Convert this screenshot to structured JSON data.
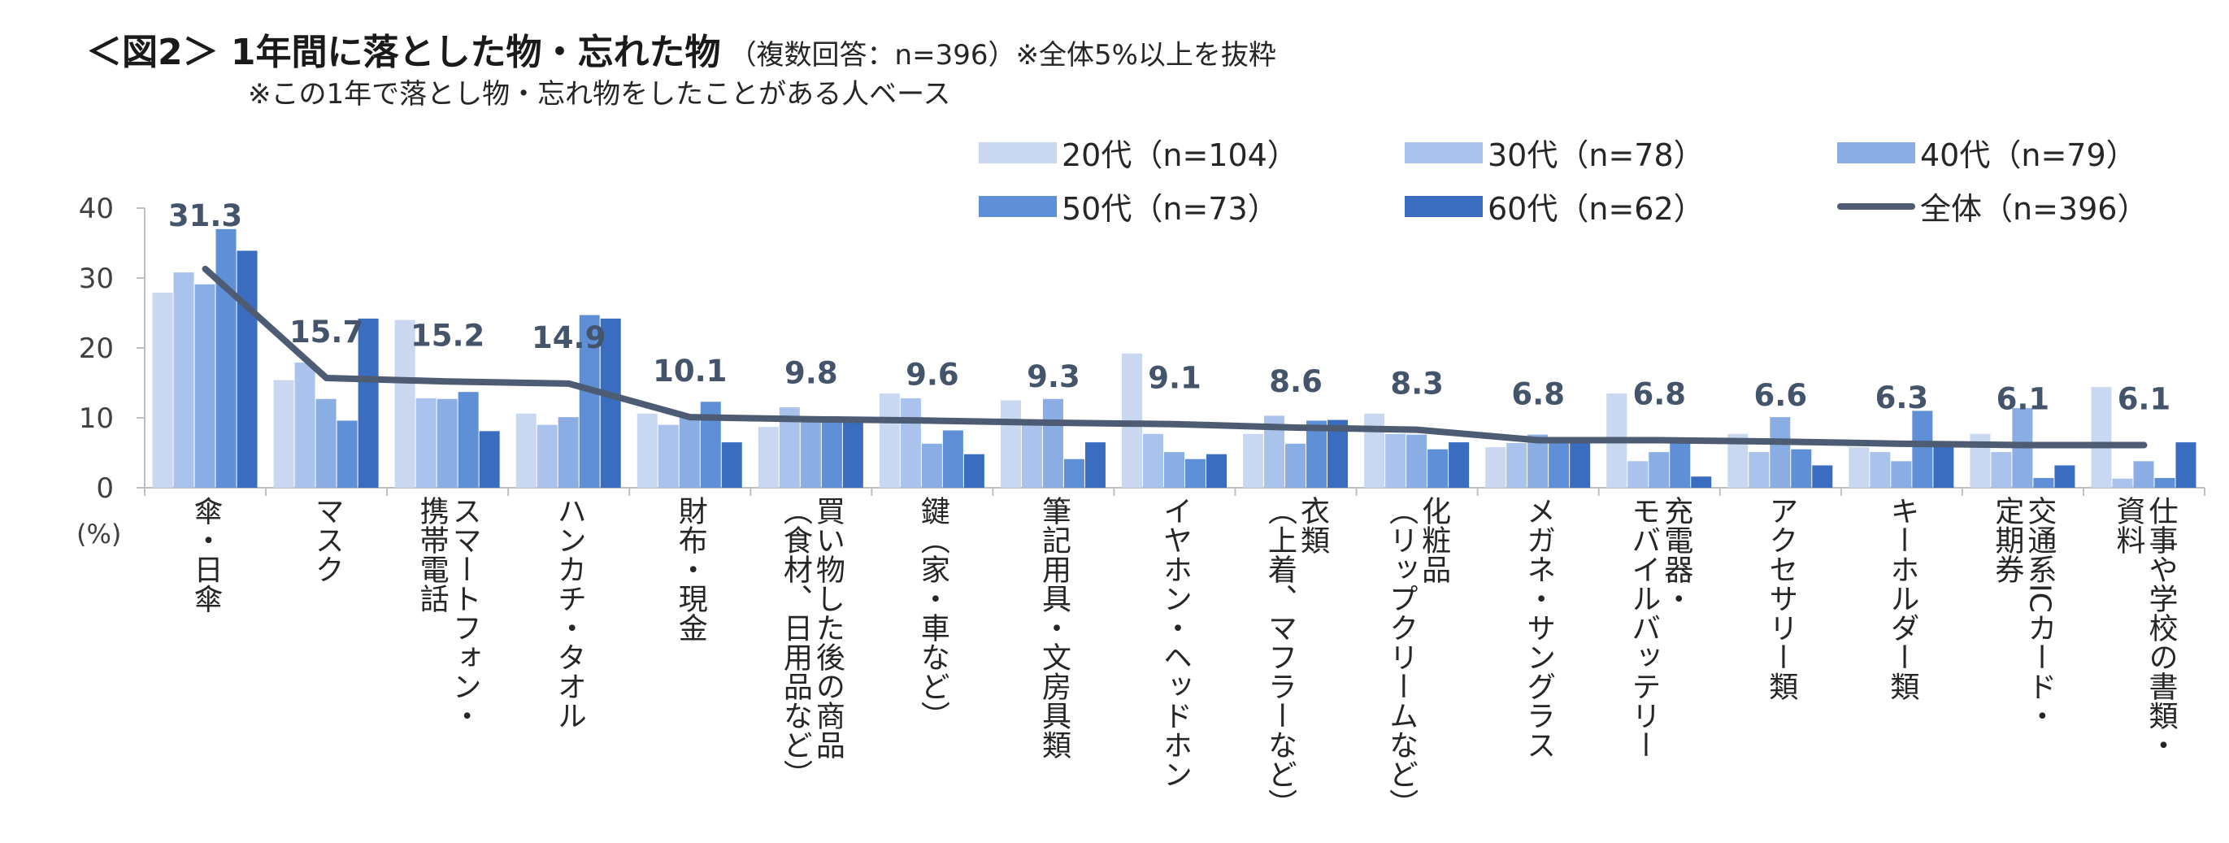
{
  "title": {
    "main": "＜図2＞ 1年間に落とした物・忘れた物",
    "sub": "（複数回答：n=396）※全体5%以上を抜粋",
    "note": "※この1年で落とし物・忘れ物をしたことがある人ベース"
  },
  "colors": {
    "s20": "#C9D8F0",
    "s30": "#A9C3EC",
    "s40": "#8AAEE4",
    "s50": "#5F8FD6",
    "s60": "#3A6DBF",
    "total": "#4D5B73",
    "label": "#44546A"
  },
  "chart_data": {
    "type": "bar",
    "ylabel": "(%)",
    "ylim": [
      0,
      40
    ],
    "yticks": [
      "0",
      "10",
      "20",
      "30",
      "40"
    ],
    "legend_position": "top-right",
    "categories": [
      "傘・日傘",
      "マスク",
      "スマートフォン・\n携帯電話",
      "ハンカチ・タオル",
      "財布・現金",
      "買い物した後の商品\n（食材、日用品など）",
      "鍵（家・車など）",
      "筆記用具・文房具類",
      "イヤホン・ヘッドホン",
      "衣類\n（上着、マフラーなど）",
      "化粧品\n（リップクリームなど）",
      "メガネ・サングラス",
      "充電器・\nモバイルバッテリー",
      "アクセサリー類",
      "キーホルダー類",
      "交通系ICカード・\n定期券",
      "仕事や学校の書類・\n資料"
    ],
    "series": [
      {
        "name": "20代（n=104）",
        "type": "bar",
        "values": [
          27.9,
          15.4,
          24.0,
          10.6,
          10.6,
          8.7,
          13.5,
          12.5,
          19.2,
          7.7,
          10.6,
          5.8,
          13.5,
          7.7,
          5.8,
          7.7,
          14.4
        ]
      },
      {
        "name": "30代（n=78）",
        "type": "bar",
        "values": [
          30.8,
          17.9,
          12.8,
          9.0,
          9.0,
          11.5,
          12.8,
          9.0,
          7.7,
          10.3,
          7.7,
          6.4,
          3.8,
          5.1,
          5.1,
          5.1,
          1.3
        ]
      },
      {
        "name": "40代（n=79）",
        "type": "bar",
        "values": [
          29.1,
          12.7,
          12.7,
          10.1,
          10.1,
          10.1,
          6.3,
          12.7,
          5.1,
          6.3,
          7.6,
          7.6,
          5.1,
          10.1,
          3.8,
          11.4,
          3.8
        ]
      },
      {
        "name": "50代（n=73）",
        "type": "bar",
        "values": [
          37.0,
          9.6,
          13.7,
          24.7,
          12.3,
          9.6,
          8.2,
          4.1,
          4.1,
          9.6,
          5.5,
          6.8,
          6.8,
          5.5,
          11.0,
          1.4,
          1.4
        ]
      },
      {
        "name": "60代（n=62）",
        "type": "bar",
        "values": [
          33.9,
          24.2,
          8.1,
          24.2,
          6.5,
          9.7,
          4.8,
          6.5,
          4.8,
          9.7,
          6.5,
          6.5,
          1.6,
          3.2,
          6.5,
          3.2,
          6.5
        ]
      },
      {
        "name": "全体（n=396）",
        "type": "line",
        "values": [
          31.3,
          15.7,
          15.2,
          14.9,
          10.1,
          9.8,
          9.6,
          9.3,
          9.1,
          8.6,
          8.3,
          6.8,
          6.8,
          6.6,
          6.3,
          6.1,
          6.1
        ]
      }
    ],
    "data_labels": [
      "31.3",
      "15.7",
      "15.2",
      "14.9",
      "10.1",
      "9.8",
      "9.6",
      "9.3",
      "9.1",
      "8.6",
      "8.3",
      "6.8",
      "6.8",
      "6.6",
      "6.3",
      "6.1",
      "6.1"
    ]
  }
}
